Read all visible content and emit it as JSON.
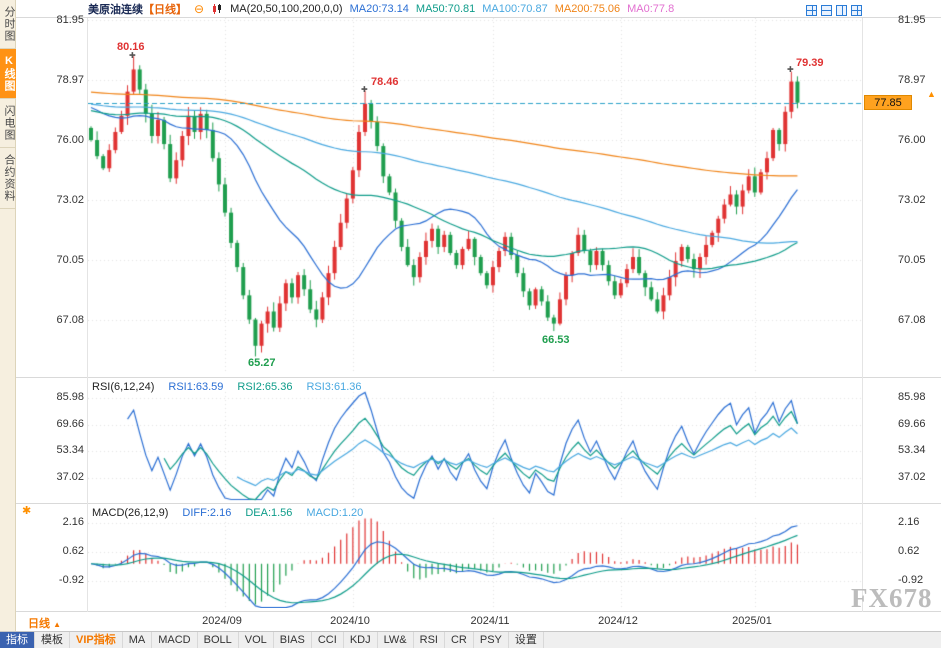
{
  "sidebar": {
    "items": [
      {
        "label": "分时图",
        "active": false
      },
      {
        "label": "K线图",
        "active": true
      },
      {
        "label": "闪电图",
        "active": false
      },
      {
        "label": "合约资料",
        "active": false
      }
    ]
  },
  "header": {
    "instrument": "美原油连续",
    "period": "【日线】",
    "ma_settings": "MA(20,50,100,200,0,0)",
    "ma20": "MA20:73.14",
    "ma50": "MA50:70.81",
    "ma100": "MA100:70.87",
    "ma200": "MA200:75.06",
    "ma0": "MA0:77.8"
  },
  "price_axis": {
    "ticks": [
      "81.95",
      "78.97",
      "76.00",
      "73.02",
      "70.05",
      "67.08"
    ],
    "current": "77.85"
  },
  "annotations": {
    "high_aug": "80.16",
    "high_oct": "78.46",
    "high_jan": "79.39",
    "low_sep": "65.27",
    "low_nov": "66.53"
  },
  "rsi": {
    "title": "RSI(6,12,24)",
    "v1": "RSI1:63.59",
    "v2": "RSI2:65.36",
    "v3": "RSI3:61.36",
    "ticks": [
      "85.98",
      "69.66",
      "53.34",
      "37.02"
    ]
  },
  "macd": {
    "title": "MACD(26,12,9)",
    "diff": "DIFF:2.16",
    "dea": "DEA:1.56",
    "macd": "MACD:1.20",
    "ticks": [
      "2.16",
      "0.62",
      "-0.92"
    ]
  },
  "xaxis": {
    "labels": [
      "2024/09",
      "2024/10",
      "2024/11",
      "2024/12",
      "2025/01"
    ]
  },
  "footer": {
    "period_label": "日线",
    "buttons": [
      "指标",
      "模板",
      "VIP指标",
      "MA",
      "MACD",
      "BOLL",
      "VOL",
      "BIAS",
      "CCI",
      "KDJ",
      "LW&",
      "RSI",
      "CR",
      "PSY",
      "设置"
    ]
  },
  "watermark": "FX678",
  "chart_data": {
    "type": "candlestick",
    "title": "美原油连续 日线 (WTI Crude Oil Continuous, Daily)",
    "current_price": 77.85,
    "open_first": 76.6,
    "closes": [
      76.0,
      75.2,
      74.6,
      75.5,
      76.4,
      77.2,
      78.4,
      79.5,
      78.5,
      77.3,
      76.2,
      77.0,
      75.8,
      74.1,
      75.0,
      76.2,
      77.2,
      76.4,
      77.3,
      76.5,
      75.1,
      73.8,
      72.4,
      70.9,
      69.7,
      68.3,
      67.1,
      65.8,
      66.9,
      67.5,
      66.7,
      67.9,
      68.9,
      68.2,
      69.3,
      68.6,
      67.6,
      67.1,
      68.2,
      69.4,
      70.7,
      71.9,
      73.1,
      74.5,
      76.4,
      77.8,
      76.9,
      75.7,
      74.2,
      73.4,
      72.0,
      70.7,
      69.8,
      69.2,
      70.2,
      71.0,
      71.6,
      70.7,
      71.3,
      70.4,
      69.8,
      70.6,
      71.1,
      70.2,
      69.4,
      68.8,
      69.7,
      70.5,
      71.2,
      70.3,
      69.4,
      68.5,
      67.8,
      68.6,
      68.0,
      67.2,
      66.9,
      68.1,
      69.3,
      70.4,
      71.3,
      70.5,
      69.8,
      70.5,
      69.8,
      69.0,
      68.3,
      68.9,
      69.6,
      70.2,
      69.4,
      68.7,
      68.1,
      67.5,
      68.3,
      69.2,
      70.0,
      70.7,
      70.1,
      69.6,
      70.2,
      70.8,
      71.4,
      72.1,
      72.8,
      73.3,
      72.7,
      73.5,
      74.2,
      73.4,
      74.4,
      75.1,
      76.5,
      75.8,
      77.4,
      78.9,
      77.85
    ],
    "specials": {
      "7": {
        "high": 80.16
      },
      "27": {
        "low": 65.27
      },
      "45": {
        "high": 78.46
      },
      "76": {
        "low": 66.53
      },
      "115": {
        "high": 79.39
      }
    },
    "month_ticks": [
      {
        "label": "2024/09",
        "index": 22
      },
      {
        "label": "2024/10",
        "index": 43
      },
      {
        "label": "2024/11",
        "index": 66
      },
      {
        "label": "2024/12",
        "index": 87
      },
      {
        "label": "2025/01",
        "index": 109
      }
    ],
    "main_axis_values": [
      81.95,
      78.97,
      76.0,
      73.02,
      70.05,
      67.08
    ],
    "rsi_axis_values": [
      85.98,
      69.66,
      53.34,
      37.02
    ],
    "macd_axis_values": [
      2.16,
      0.62,
      -0.92
    ],
    "indicators": {
      "ma_periods": [
        20,
        50,
        100,
        200
      ],
      "rsi_periods": [
        6,
        12,
        24
      ],
      "macd_params": [
        26,
        12,
        9
      ]
    },
    "colors": {
      "up": "#e03333",
      "down": "#1f9e4e",
      "ma20": "#2b6fd4",
      "ma50": "#0f9c8a",
      "ma100": "#49a8e0",
      "ma200": "#f08418",
      "rsi1": "#2b6fd4",
      "rsi2": "#0f9c8a",
      "rsi3": "#49a8e0",
      "diff": "#2b6fd4",
      "dea": "#0f9c8a",
      "grid": "#e3e3e3",
      "current_line": "#2aa0c8",
      "tag_bg": "#ffa21f"
    }
  }
}
